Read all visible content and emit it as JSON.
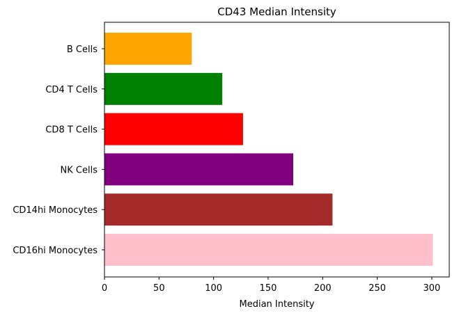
{
  "chart_data": {
    "type": "bar",
    "orientation": "horizontal",
    "title": "CD43 Median Intensity",
    "xlabel": "Median Intensity",
    "ylabel": "",
    "categories": [
      "B Cells",
      "CD4 T Cells",
      "CD8 T Cells",
      "NK Cells",
      "CD14hi Monocytes",
      "CD16hi Monocytes"
    ],
    "values": [
      80,
      108,
      127,
      173,
      209,
      301
    ],
    "colors": [
      "#ffa500",
      "#008000",
      "#ff0000",
      "#800080",
      "#a52a2a",
      "#ffc0cb"
    ],
    "xlim": [
      0,
      316
    ],
    "xticks": [
      0,
      50,
      100,
      150,
      200,
      250,
      300
    ],
    "xtick_labels": [
      "0",
      "50",
      "100",
      "150",
      "200",
      "250",
      "300"
    ],
    "grid": false,
    "legend": "none"
  }
}
